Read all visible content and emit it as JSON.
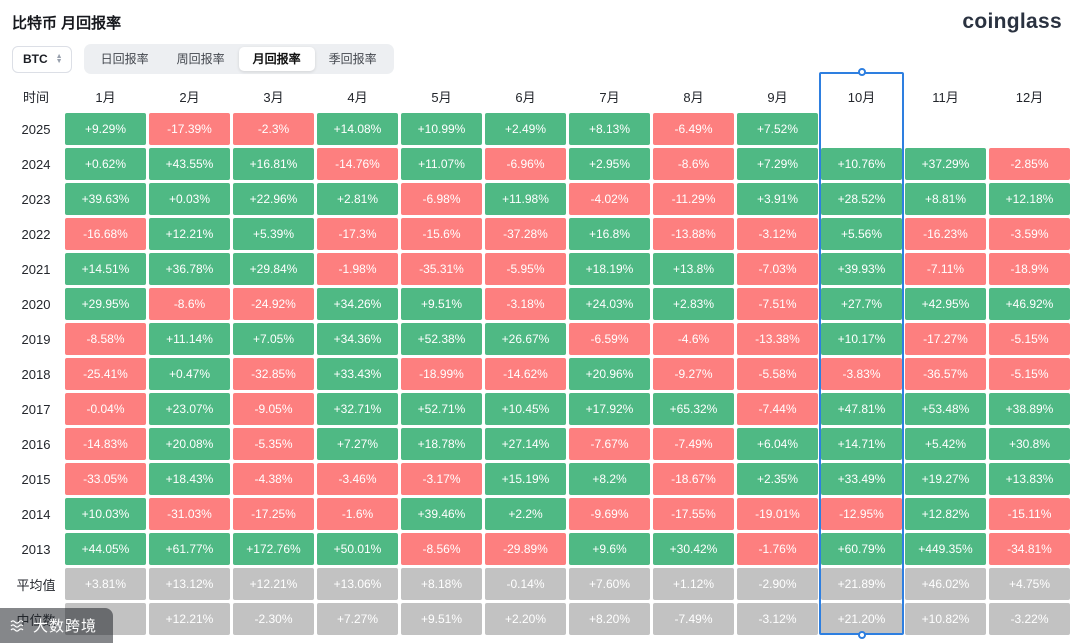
{
  "page": {
    "title": "比特币 月回报率",
    "brand": "coinglass"
  },
  "controls": {
    "symbol": "BTC",
    "tabs": [
      "日回报率",
      "周回报率",
      "月回报率",
      "季回报率"
    ],
    "active_tab": "月回报率"
  },
  "watermark": {
    "text": "大数跨境"
  },
  "chart_data": {
    "type": "heatmap",
    "title": "比特币 月回报率",
    "columns": [
      "时间",
      "1月",
      "2月",
      "3月",
      "4月",
      "5月",
      "6月",
      "7月",
      "8月",
      "9月",
      "10月",
      "11月",
      "12月"
    ],
    "highlight_column": "10月",
    "rows": [
      {
        "label": "2025",
        "type": "year",
        "values": [
          "+9.29%",
          "-17.39%",
          "-2.3%",
          "+14.08%",
          "+10.99%",
          "+2.49%",
          "+8.13%",
          "-6.49%",
          "+7.52%",
          "",
          "",
          ""
        ]
      },
      {
        "label": "2024",
        "type": "year",
        "values": [
          "+0.62%",
          "+43.55%",
          "+16.81%",
          "-14.76%",
          "+11.07%",
          "-6.96%",
          "+2.95%",
          "-8.6%",
          "+7.29%",
          "+10.76%",
          "+37.29%",
          "-2.85%"
        ]
      },
      {
        "label": "2023",
        "type": "year",
        "values": [
          "+39.63%",
          "+0.03%",
          "+22.96%",
          "+2.81%",
          "-6.98%",
          "+11.98%",
          "-4.02%",
          "-11.29%",
          "+3.91%",
          "+28.52%",
          "+8.81%",
          "+12.18%"
        ]
      },
      {
        "label": "2022",
        "type": "year",
        "values": [
          "-16.68%",
          "+12.21%",
          "+5.39%",
          "-17.3%",
          "-15.6%",
          "-37.28%",
          "+16.8%",
          "-13.88%",
          "-3.12%",
          "+5.56%",
          "-16.23%",
          "-3.59%"
        ]
      },
      {
        "label": "2021",
        "type": "year",
        "values": [
          "+14.51%",
          "+36.78%",
          "+29.84%",
          "-1.98%",
          "-35.31%",
          "-5.95%",
          "+18.19%",
          "+13.8%",
          "-7.03%",
          "+39.93%",
          "-7.11%",
          "-18.9%"
        ]
      },
      {
        "label": "2020",
        "type": "year",
        "values": [
          "+29.95%",
          "-8.6%",
          "-24.92%",
          "+34.26%",
          "+9.51%",
          "-3.18%",
          "+24.03%",
          "+2.83%",
          "-7.51%",
          "+27.7%",
          "+42.95%",
          "+46.92%"
        ]
      },
      {
        "label": "2019",
        "type": "year",
        "values": [
          "-8.58%",
          "+11.14%",
          "+7.05%",
          "+34.36%",
          "+52.38%",
          "+26.67%",
          "-6.59%",
          "-4.6%",
          "-13.38%",
          "+10.17%",
          "-17.27%",
          "-5.15%"
        ]
      },
      {
        "label": "2018",
        "type": "year",
        "values": [
          "-25.41%",
          "+0.47%",
          "-32.85%",
          "+33.43%",
          "-18.99%",
          "-14.62%",
          "+20.96%",
          "-9.27%",
          "-5.58%",
          "-3.83%",
          "-36.57%",
          "-5.15%"
        ]
      },
      {
        "label": "2017",
        "type": "year",
        "values": [
          "-0.04%",
          "+23.07%",
          "-9.05%",
          "+32.71%",
          "+52.71%",
          "+10.45%",
          "+17.92%",
          "+65.32%",
          "-7.44%",
          "+47.81%",
          "+53.48%",
          "+38.89%"
        ]
      },
      {
        "label": "2016",
        "type": "year",
        "values": [
          "-14.83%",
          "+20.08%",
          "-5.35%",
          "+7.27%",
          "+18.78%",
          "+27.14%",
          "-7.67%",
          "-7.49%",
          "+6.04%",
          "+14.71%",
          "+5.42%",
          "+30.8%"
        ]
      },
      {
        "label": "2015",
        "type": "year",
        "values": [
          "-33.05%",
          "+18.43%",
          "-4.38%",
          "-3.46%",
          "-3.17%",
          "+15.19%",
          "+8.2%",
          "-18.67%",
          "+2.35%",
          "+33.49%",
          "+19.27%",
          "+13.83%"
        ]
      },
      {
        "label": "2014",
        "type": "year",
        "values": [
          "+10.03%",
          "-31.03%",
          "-17.25%",
          "-1.6%",
          "+39.46%",
          "+2.2%",
          "-9.69%",
          "-17.55%",
          "-19.01%",
          "-12.95%",
          "+12.82%",
          "-15.11%"
        ]
      },
      {
        "label": "2013",
        "type": "year",
        "values": [
          "+44.05%",
          "+61.77%",
          "+172.76%",
          "+50.01%",
          "-8.56%",
          "-29.89%",
          "+9.6%",
          "+30.42%",
          "-1.76%",
          "+60.79%",
          "+449.35%",
          "-34.81%"
        ]
      },
      {
        "label": "平均值",
        "type": "stat",
        "values": [
          "+3.81%",
          "+13.12%",
          "+12.21%",
          "+13.06%",
          "+8.18%",
          "-0.14%",
          "+7.60%",
          "+1.12%",
          "-2.90%",
          "+21.89%",
          "+46.02%",
          "+4.75%"
        ]
      },
      {
        "label": "中位数",
        "type": "stat",
        "values": [
          "",
          "+12.21%",
          "-2.30%",
          "+7.27%",
          "+9.51%",
          "+2.20%",
          "+8.20%",
          "-7.49%",
          "-3.12%",
          "+21.20%",
          "+10.82%",
          "-3.22%"
        ]
      }
    ],
    "colors": {
      "positive": "#4fb984",
      "negative": "#fd7f7f",
      "stat": "#c2c2c2",
      "highlight": "#2e7fe0"
    }
  }
}
